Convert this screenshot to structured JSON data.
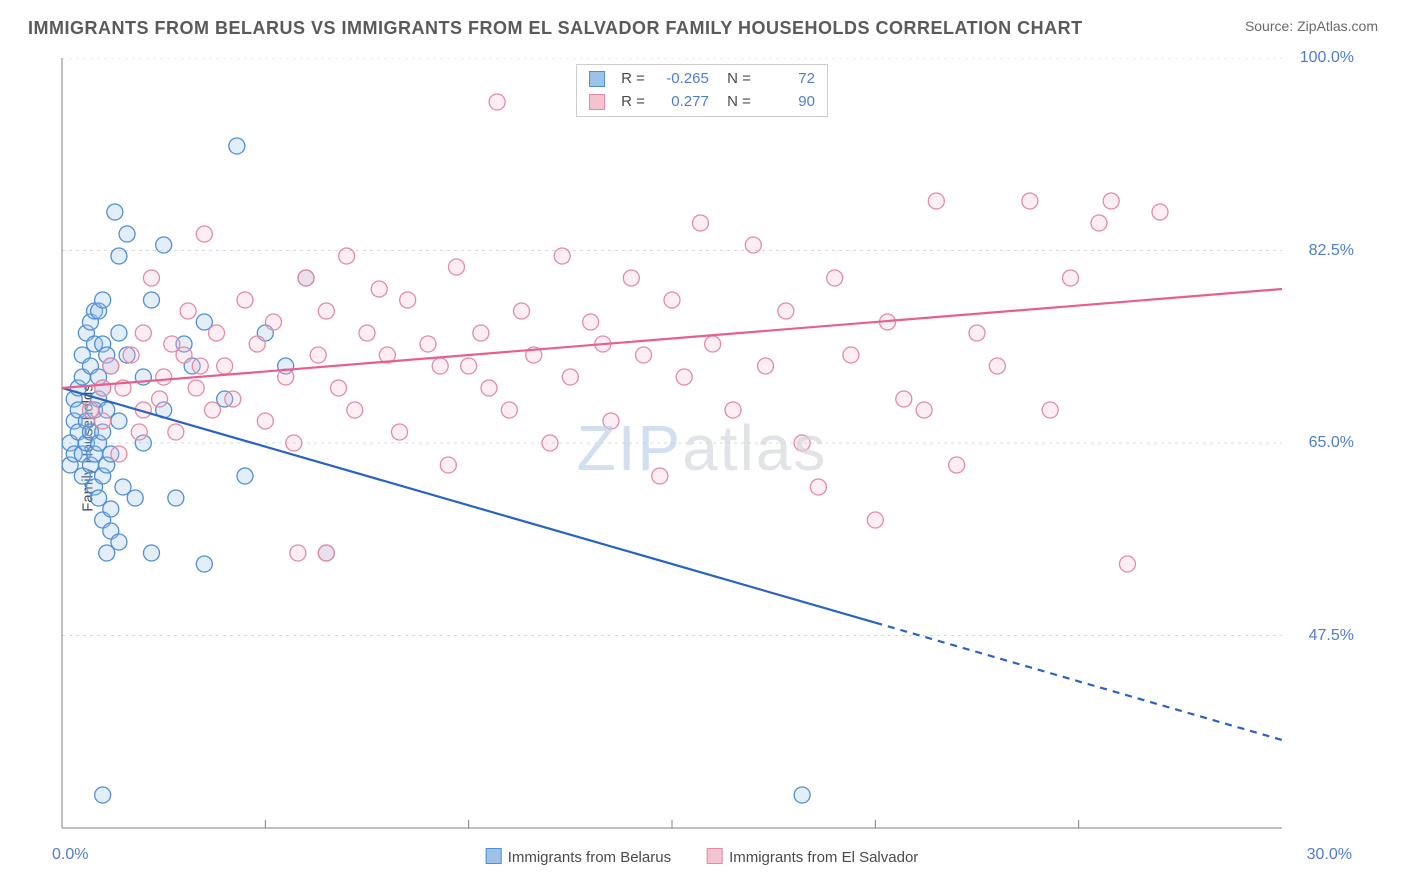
{
  "title": "IMMIGRANTS FROM BELARUS VS IMMIGRANTS FROM EL SALVADOR FAMILY HOUSEHOLDS CORRELATION CHART",
  "source": "Source: ZipAtlas.com",
  "watermark": {
    "bold": "ZIP",
    "thin": "atlas"
  },
  "ylabel": "Family Households",
  "chart": {
    "type": "scatter-with-trendlines",
    "background": "#ffffff",
    "grid_color": "#d8d8d8",
    "axis_color": "#808080",
    "text_color": "#4a4a4a",
    "value_color": "#4f7dd1",
    "xlim": [
      0,
      30
    ],
    "ylim": [
      30,
      100
    ],
    "xticks_minor": [
      5,
      10,
      15,
      20,
      25
    ],
    "xticks_label": [
      {
        "x": 0,
        "label": "0.0%"
      },
      {
        "x": 30,
        "label": "30.0%"
      }
    ],
    "yticks": [
      {
        "y": 47.5,
        "label": "47.5%"
      },
      {
        "y": 65.0,
        "label": "65.0%"
      },
      {
        "y": 82.5,
        "label": "82.5%"
      },
      {
        "y": 100.0,
        "label": "100.0%"
      }
    ],
    "marker_radius": 8,
    "marker_stroke_width": 1.3,
    "marker_fill_opacity": 0.28,
    "line_width": 2.2,
    "series": [
      {
        "name": "Immigrants from Belarus",
        "color_stroke": "#4f8fd6",
        "color_fill": "#9cc2ea",
        "line_color": "#2a63c4",
        "R": "-0.265",
        "N": "72",
        "trend": {
          "x1": 0,
          "y1": 70.0,
          "x2": 30,
          "y2": 38.0,
          "solid_until_x": 20
        },
        "points": [
          [
            0.2,
            63
          ],
          [
            0.2,
            65
          ],
          [
            0.3,
            64
          ],
          [
            0.3,
            67
          ],
          [
            0.3,
            69
          ],
          [
            0.4,
            66
          ],
          [
            0.4,
            68
          ],
          [
            0.4,
            70
          ],
          [
            0.5,
            62
          ],
          [
            0.5,
            64
          ],
          [
            0.5,
            71
          ],
          [
            0.5,
            73
          ],
          [
            0.6,
            65
          ],
          [
            0.6,
            67
          ],
          [
            0.6,
            75
          ],
          [
            0.7,
            63
          ],
          [
            0.7,
            66
          ],
          [
            0.7,
            72
          ],
          [
            0.7,
            76
          ],
          [
            0.8,
            61
          ],
          [
            0.8,
            64
          ],
          [
            0.8,
            68
          ],
          [
            0.8,
            74
          ],
          [
            0.8,
            77
          ],
          [
            0.9,
            60
          ],
          [
            0.9,
            65
          ],
          [
            0.9,
            69
          ],
          [
            0.9,
            71
          ],
          [
            0.9,
            77
          ],
          [
            1.0,
            58
          ],
          [
            1.0,
            62
          ],
          [
            1.0,
            66
          ],
          [
            1.0,
            70
          ],
          [
            1.0,
            74
          ],
          [
            1.0,
            78
          ],
          [
            1.1,
            55
          ],
          [
            1.1,
            63
          ],
          [
            1.1,
            68
          ],
          [
            1.1,
            73
          ],
          [
            1.2,
            57
          ],
          [
            1.2,
            59
          ],
          [
            1.2,
            64
          ],
          [
            1.2,
            72
          ],
          [
            1.3,
            86
          ],
          [
            1.4,
            56
          ],
          [
            1.4,
            67
          ],
          [
            1.4,
            75
          ],
          [
            1.4,
            82
          ],
          [
            1.5,
            61
          ],
          [
            1.6,
            73
          ],
          [
            1.6,
            84
          ],
          [
            1.8,
            60
          ],
          [
            2.0,
            65
          ],
          [
            2.0,
            71
          ],
          [
            2.2,
            55
          ],
          [
            2.2,
            78
          ],
          [
            2.5,
            68
          ],
          [
            2.5,
            83
          ],
          [
            2.8,
            60
          ],
          [
            3.0,
            74
          ],
          [
            3.2,
            72
          ],
          [
            3.5,
            54
          ],
          [
            3.5,
            76
          ],
          [
            4.0,
            69
          ],
          [
            4.3,
            92
          ],
          [
            4.5,
            62
          ],
          [
            5.0,
            75
          ],
          [
            5.5,
            72
          ],
          [
            6.0,
            80
          ],
          [
            6.5,
            55
          ],
          [
            1.0,
            33
          ],
          [
            18.2,
            33
          ]
        ]
      },
      {
        "name": "Immigrants from El Salvador",
        "color_stroke": "#e48aa4",
        "color_fill": "#f5c2d0",
        "line_color": "#e95f8c",
        "R": "0.277",
        "N": "90",
        "trend": {
          "x1": 0,
          "y1": 70.0,
          "x2": 30,
          "y2": 79.0,
          "solid_until_x": 30
        },
        "points": [
          [
            0.7,
            68
          ],
          [
            1.0,
            67
          ],
          [
            1.0,
            70
          ],
          [
            1.2,
            72
          ],
          [
            1.4,
            64
          ],
          [
            1.5,
            70
          ],
          [
            1.7,
            73
          ],
          [
            1.9,
            66
          ],
          [
            2.0,
            68
          ],
          [
            2.0,
            75
          ],
          [
            2.2,
            80
          ],
          [
            2.4,
            69
          ],
          [
            2.5,
            71
          ],
          [
            2.7,
            74
          ],
          [
            2.8,
            66
          ],
          [
            3.0,
            73
          ],
          [
            3.1,
            77
          ],
          [
            3.3,
            70
          ],
          [
            3.5,
            84
          ],
          [
            3.7,
            68
          ],
          [
            3.8,
            75
          ],
          [
            4.0,
            72
          ],
          [
            4.2,
            69
          ],
          [
            4.5,
            78
          ],
          [
            4.8,
            74
          ],
          [
            5.0,
            67
          ],
          [
            5.2,
            76
          ],
          [
            5.5,
            71
          ],
          [
            5.7,
            65
          ],
          [
            5.8,
            55
          ],
          [
            6.0,
            80
          ],
          [
            6.3,
            73
          ],
          [
            6.5,
            77
          ],
          [
            6.8,
            70
          ],
          [
            7.0,
            82
          ],
          [
            7.2,
            68
          ],
          [
            7.5,
            75
          ],
          [
            7.8,
            79
          ],
          [
            8.0,
            73
          ],
          [
            8.3,
            66
          ],
          [
            8.5,
            78
          ],
          [
            9.0,
            74
          ],
          [
            9.3,
            72
          ],
          [
            9.5,
            63
          ],
          [
            9.7,
            81
          ],
          [
            10.0,
            72
          ],
          [
            10.3,
            75
          ],
          [
            10.5,
            70
          ],
          [
            10.7,
            96
          ],
          [
            11.0,
            68
          ],
          [
            11.3,
            77
          ],
          [
            11.6,
            73
          ],
          [
            12.0,
            65
          ],
          [
            12.3,
            82
          ],
          [
            12.5,
            71
          ],
          [
            13.0,
            76
          ],
          [
            13.3,
            74
          ],
          [
            13.5,
            67
          ],
          [
            14.0,
            80
          ],
          [
            14.3,
            73
          ],
          [
            14.7,
            62
          ],
          [
            15.0,
            78
          ],
          [
            15.3,
            71
          ],
          [
            15.7,
            85
          ],
          [
            16.0,
            74
          ],
          [
            16.5,
            68
          ],
          [
            17.0,
            83
          ],
          [
            17.3,
            72
          ],
          [
            17.8,
            77
          ],
          [
            18.2,
            65
          ],
          [
            18.6,
            61
          ],
          [
            19.0,
            80
          ],
          [
            19.4,
            73
          ],
          [
            20.0,
            58
          ],
          [
            20.3,
            76
          ],
          [
            20.7,
            69
          ],
          [
            21.2,
            68
          ],
          [
            21.5,
            87
          ],
          [
            22.0,
            63
          ],
          [
            22.5,
            75
          ],
          [
            23.0,
            72
          ],
          [
            23.8,
            87
          ],
          [
            24.3,
            68
          ],
          [
            24.8,
            80
          ],
          [
            25.5,
            85
          ],
          [
            26.2,
            54
          ],
          [
            25.8,
            87
          ],
          [
            27.0,
            86
          ],
          [
            6.5,
            55
          ],
          [
            3.4,
            72
          ]
        ]
      }
    ],
    "bottom_legend": [
      {
        "swatch_fill": "#9cc2ea",
        "swatch_stroke": "#4f8fd6",
        "label": "Immigrants from Belarus"
      },
      {
        "swatch_fill": "#f5c2d0",
        "swatch_stroke": "#e48aa4",
        "label": "Immigrants from El Salvador"
      }
    ]
  }
}
